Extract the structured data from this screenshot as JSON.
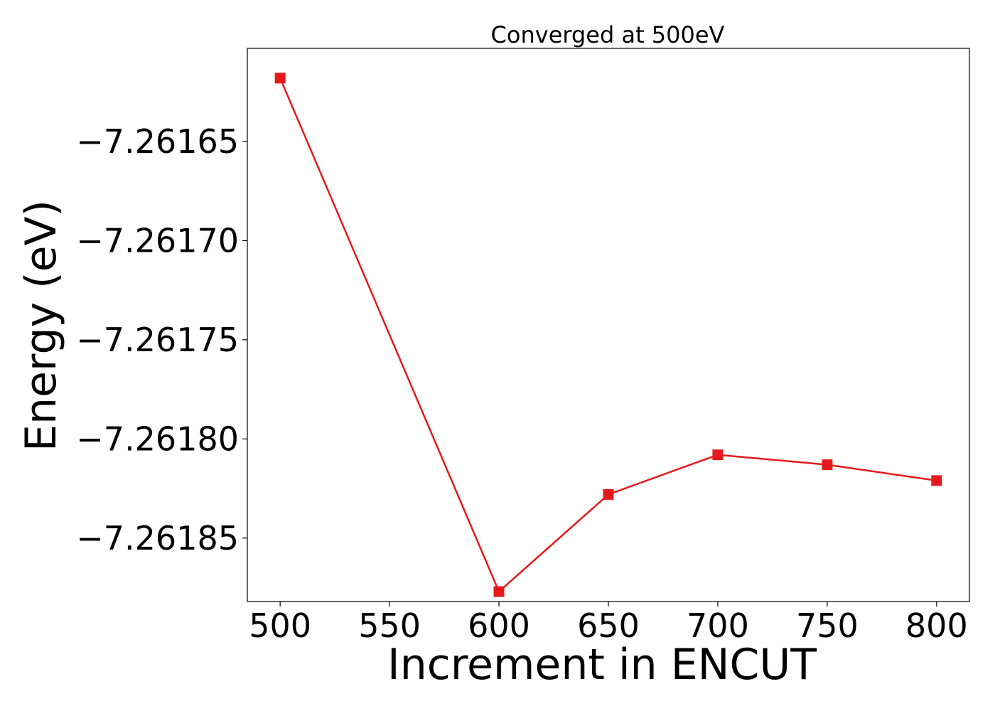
{
  "chart_data": {
    "type": "line",
    "title": "Converged at 500eV",
    "xlabel": "Increment in ENCUT",
    "ylabel": "Energy (eV)",
    "xlim": [
      485,
      815
    ],
    "ylim": [
      -7.261882,
      -7.261603
    ],
    "x_ticks": [
      500,
      550,
      600,
      650,
      700,
      750,
      800
    ],
    "x_tick_labels": [
      "500",
      "550",
      "600",
      "650",
      "700",
      "750",
      "800"
    ],
    "y_ticks": [
      -7.26165,
      -7.2617,
      -7.26175,
      -7.2618,
      -7.26185
    ],
    "y_tick_labels": [
      "−7.26165",
      "−7.26170",
      "−7.26175",
      "−7.26180",
      "−7.26185"
    ],
    "grid": false,
    "legend": "none",
    "series": [
      {
        "color": "#e41a1c",
        "marker": "square",
        "x": [
          500,
          600,
          650,
          700,
          750,
          800
        ],
        "y": [
          -7.261618,
          -7.261877,
          -7.261828,
          -7.261808,
          -7.261813,
          -7.261821
        ]
      }
    ]
  }
}
